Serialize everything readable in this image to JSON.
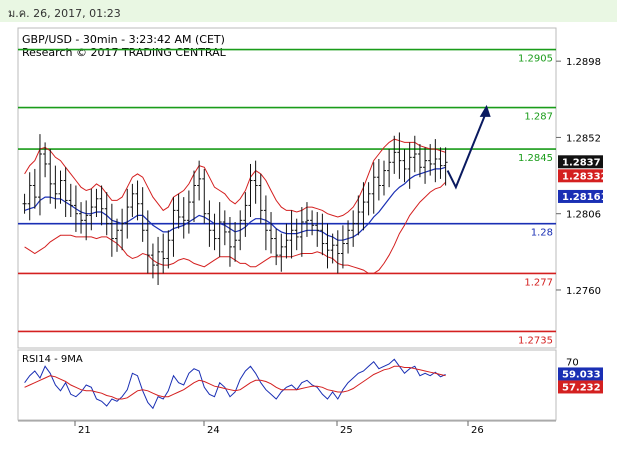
{
  "header": {
    "date": "ม.ค. 26, 2017, 01:23"
  },
  "chart_data": [
    {
      "type": "line",
      "title": "GBP/USD - 30min - 3:23:42 AM (CET)",
      "subtitle": "Research © 2017 TRADING CENTRAL",
      "ylim": [
        1.2725,
        1.2918
      ],
      "y_ticks": [
        "1.2898",
        "1.2852",
        "1.2806",
        "1.2760"
      ],
      "y_tick_values": [
        1.2898,
        1.2852,
        1.2806,
        1.276
      ],
      "x_ticks": [
        "21",
        "24",
        "25",
        "26"
      ],
      "levels": [
        {
          "label": "1.2905",
          "value": 1.2905,
          "color": "#1a9c1a"
        },
        {
          "label": "1.287",
          "value": 1.287,
          "color": "#1a9c1a"
        },
        {
          "label": "1.2845",
          "value": 1.2845,
          "color": "#1a9c1a"
        },
        {
          "label": "1.28",
          "value": 1.28,
          "color": "#1a2fb4"
        },
        {
          "label": "1.277",
          "value": 1.277,
          "color": "#d42020"
        },
        {
          "label": "1.2735",
          "value": 1.2735,
          "color": "#d42020"
        }
      ],
      "price_markers": [
        {
          "label": "1.2837",
          "value": 1.2837,
          "bg": "#111111",
          "fg": "#ffffff"
        },
        {
          "label": "1.28332",
          "value": 1.28332,
          "bg": "#d42020",
          "fg": "#ffffff"
        },
        {
          "label": "1.28161",
          "value": 1.28161,
          "bg": "#1a2fb4",
          "fg": "#ffffff"
        }
      ],
      "close": [
        1.2812,
        1.2823,
        1.2816,
        1.2842,
        1.2836,
        1.2824,
        1.2818,
        1.2826,
        1.2814,
        1.2811,
        1.2806,
        1.2802,
        1.2805,
        1.281,
        1.2815,
        1.2809,
        1.28,
        1.2791,
        1.2796,
        1.28,
        1.281,
        1.2818,
        1.2812,
        1.2796,
        1.2781,
        1.2775,
        1.2783,
        1.2779,
        1.279,
        1.2808,
        1.2804,
        1.2802,
        1.2813,
        1.2823,
        1.2827,
        1.2806,
        1.2796,
        1.2791,
        1.2801,
        1.2795,
        1.2786,
        1.279,
        1.2802,
        1.2811,
        1.2826,
        1.2823,
        1.2808,
        1.2796,
        1.2791,
        1.2781,
        1.2786,
        1.279,
        1.2796,
        1.2792,
        1.2801,
        1.2802,
        1.2799,
        1.2796,
        1.2788,
        1.2784,
        1.2787,
        1.2782,
        1.2788,
        1.2796,
        1.28,
        1.2807,
        1.2813,
        1.2818,
        1.2828,
        1.2823,
        1.2832,
        1.2837,
        1.2843,
        1.2838,
        1.2833,
        1.284,
        1.2842,
        1.2834,
        1.2838,
        1.2836,
        1.2839,
        1.2835,
        1.2837
      ],
      "projection": [
        [
          1.2832,
          1.2822
        ],
        [
          1.2832,
          1.2868
        ]
      ],
      "ma": [
        1.2808,
        1.2809,
        1.281,
        1.2814,
        1.2816,
        1.2816,
        1.2815,
        1.2815,
        1.2813,
        1.2811,
        1.2809,
        1.2807,
        1.2806,
        1.2806,
        1.2807,
        1.2807,
        1.2805,
        1.2802,
        1.2801,
        1.28,
        1.2801,
        1.2803,
        1.2805,
        1.2805,
        1.2802,
        1.2799,
        1.2797,
        1.2795,
        1.2795,
        1.2797,
        1.2798,
        1.2799,
        1.2801,
        1.2803,
        1.2805,
        1.2804,
        1.2802,
        1.28,
        1.28,
        1.2799,
        1.2797,
        1.2795,
        1.2796,
        1.2798,
        1.2801,
        1.2803,
        1.2803,
        1.2802,
        1.28,
        1.2797,
        1.2795,
        1.2794,
        1.2794,
        1.2794,
        1.2795,
        1.2796,
        1.2796,
        1.2796,
        1.2795,
        1.2793,
        1.2792,
        1.279,
        1.279,
        1.2791,
        1.2792,
        1.2794,
        1.2797,
        1.28,
        1.2804,
        1.2807,
        1.2811,
        1.2815,
        1.2819,
        1.2822,
        1.2824,
        1.2827,
        1.2829,
        1.283,
        1.2831,
        1.2832,
        1.2833,
        1.2833,
        1.2834
      ],
      "upper_band": [
        1.283,
        1.2835,
        1.2838,
        1.2845,
        1.2846,
        1.2844,
        1.284,
        1.2838,
        1.2834,
        1.283,
        1.2826,
        1.2822,
        1.282,
        1.2821,
        1.2824,
        1.2822,
        1.2818,
        1.2814,
        1.2814,
        1.2816,
        1.2822,
        1.2828,
        1.283,
        1.2828,
        1.2822,
        1.2816,
        1.2812,
        1.2808,
        1.281,
        1.2816,
        1.2818,
        1.282,
        1.2824,
        1.283,
        1.2835,
        1.2834,
        1.2828,
        1.2822,
        1.282,
        1.2818,
        1.2814,
        1.2812,
        1.2815,
        1.282,
        1.2828,
        1.2832,
        1.283,
        1.2826,
        1.282,
        1.2814,
        1.281,
        1.2808,
        1.2808,
        1.2807,
        1.2808,
        1.281,
        1.281,
        1.2809,
        1.2808,
        1.2806,
        1.2805,
        1.2804,
        1.2805,
        1.2807,
        1.281,
        1.2815,
        1.2822,
        1.283,
        1.2838,
        1.2842,
        1.2846,
        1.2849,
        1.2851,
        1.285,
        1.2849,
        1.2849,
        1.2849,
        1.2847,
        1.2846,
        1.2845,
        1.2845,
        1.2844,
        1.2843
      ],
      "lower_band": [
        1.2786,
        1.2784,
        1.2782,
        1.2784,
        1.2786,
        1.2789,
        1.2791,
        1.2793,
        1.2793,
        1.2793,
        1.2792,
        1.2792,
        1.2792,
        1.2792,
        1.2791,
        1.2792,
        1.2792,
        1.279,
        1.2788,
        1.2785,
        1.2781,
        1.2779,
        1.278,
        1.2782,
        1.2781,
        1.2778,
        1.2776,
        1.2775,
        1.2775,
        1.2776,
        1.2778,
        1.2779,
        1.2778,
        1.2776,
        1.2775,
        1.2774,
        1.2776,
        1.2778,
        1.278,
        1.278,
        1.278,
        1.2778,
        1.2776,
        1.2776,
        1.2774,
        1.2774,
        1.2776,
        1.2778,
        1.278,
        1.278,
        1.278,
        1.278,
        1.278,
        1.2781,
        1.2782,
        1.2782,
        1.2782,
        1.2783,
        1.2782,
        1.278,
        1.2779,
        1.2776,
        1.2775,
        1.2775,
        1.2774,
        1.2773,
        1.2772,
        1.277,
        1.277,
        1.2772,
        1.2776,
        1.2781,
        1.2787,
        1.2794,
        1.2799,
        1.2805,
        1.2809,
        1.2813,
        1.2816,
        1.2819,
        1.2821,
        1.2822,
        1.2825
      ]
    },
    {
      "type": "line",
      "title": "RSI14 - 9MA",
      "ylim": [
        20,
        80
      ],
      "y_ticks": [
        "70"
      ],
      "y_tick_values": [
        70
      ],
      "markers": [
        {
          "label": "59.033",
          "value": 59.033,
          "bg": "#1a2fb4",
          "fg": "#ffffff"
        },
        {
          "label": "57.232",
          "value": 57.232,
          "bg": "#d42020",
          "fg": "#ffffff"
        }
      ],
      "rsi": [
        52,
        58,
        62,
        56,
        66,
        60,
        50,
        45,
        52,
        42,
        40,
        44,
        50,
        48,
        38,
        36,
        32,
        38,
        36,
        40,
        46,
        60,
        58,
        45,
        35,
        30,
        40,
        38,
        45,
        58,
        52,
        50,
        60,
        64,
        62,
        48,
        42,
        40,
        52,
        48,
        40,
        44,
        55,
        62,
        66,
        60,
        52,
        46,
        42,
        38,
        44,
        48,
        50,
        46,
        52,
        54,
        50,
        48,
        42,
        38,
        44,
        38,
        46,
        52,
        56,
        60,
        62,
        66,
        70,
        64,
        66,
        68,
        72,
        66,
        60,
        64,
        66,
        58,
        60,
        58,
        61,
        57,
        59
      ],
      "rsi_ma": [
        48,
        50,
        52,
        54,
        56,
        58,
        57,
        55,
        53,
        50,
        48,
        46,
        45,
        45,
        44,
        43,
        41,
        40,
        38,
        38,
        39,
        42,
        45,
        46,
        45,
        43,
        41,
        40,
        40,
        42,
        44,
        46,
        49,
        52,
        54,
        53,
        51,
        49,
        48,
        47,
        46,
        45,
        46,
        49,
        52,
        54,
        54,
        53,
        51,
        48,
        46,
        46,
        46,
        46,
        47,
        48,
        49,
        49,
        48,
        46,
        45,
        44,
        44,
        45,
        47,
        50,
        53,
        56,
        59,
        61,
        63,
        64,
        66,
        66,
        65,
        65,
        64,
        63,
        62,
        61,
        60,
        59,
        58
      ]
    }
  ]
}
